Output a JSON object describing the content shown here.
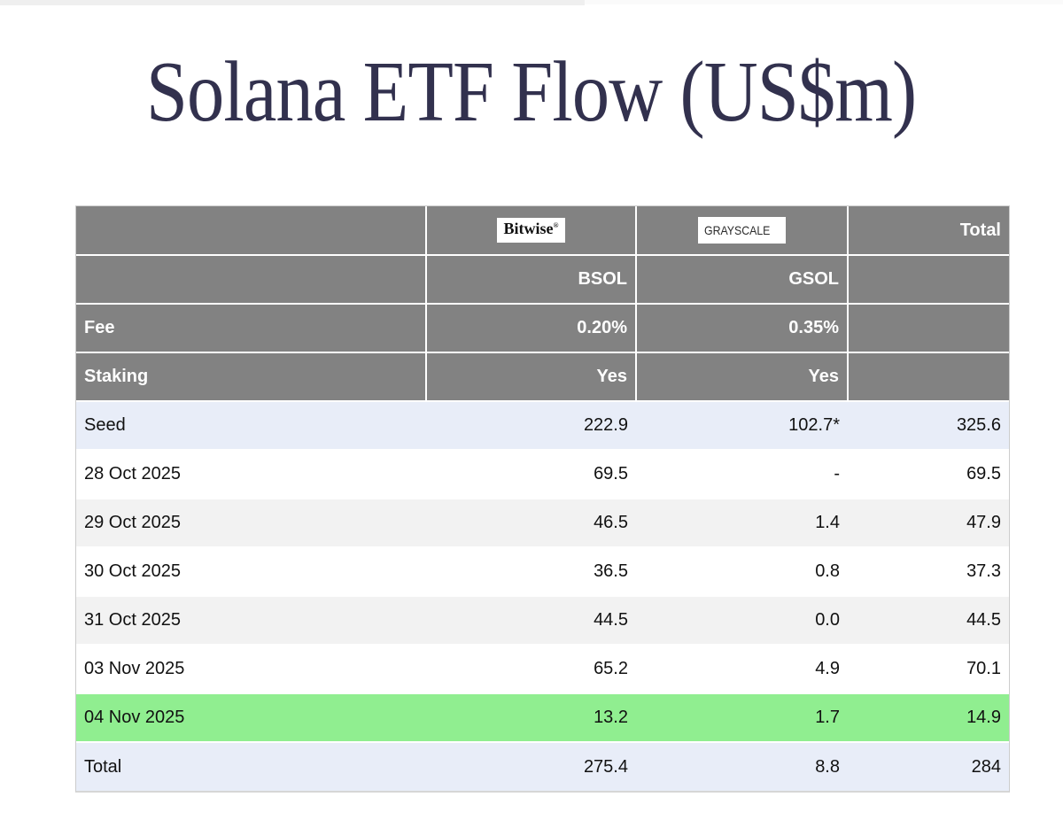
{
  "page": {
    "title": "Solana ETF Flow (US$m)"
  },
  "table": {
    "providers": {
      "bitwise_logo": "Bitwise",
      "bitwise_mark": "®",
      "grayscale_logo": "GRAYSCALE",
      "total_header": "Total"
    },
    "tickers": {
      "bsol": "BSOL",
      "gsol": "GSOL"
    },
    "fee": {
      "label": "Fee",
      "bsol": "0.20%",
      "gsol": "0.35%"
    },
    "staking": {
      "label": "Staking",
      "bsol": "Yes",
      "gsol": "Yes"
    },
    "rows": [
      {
        "label": "Seed",
        "bsol": "222.9",
        "gsol": "102.7*",
        "total": "325.6"
      },
      {
        "label": "28 Oct 2025",
        "bsol": "69.5",
        "gsol": "-",
        "total": "69.5"
      },
      {
        "label": "29 Oct 2025",
        "bsol": "46.5",
        "gsol": "1.4",
        "total": "47.9"
      },
      {
        "label": "30 Oct 2025",
        "bsol": "36.5",
        "gsol": "0.8",
        "total": "37.3"
      },
      {
        "label": "31 Oct 2025",
        "bsol": "44.5",
        "gsol": "0.0",
        "total": "44.5"
      },
      {
        "label": "03 Nov 2025",
        "bsol": "65.2",
        "gsol": "4.9",
        "total": "70.1"
      },
      {
        "label": "04 Nov 2025",
        "bsol": "13.2",
        "gsol": "1.7",
        "total": "14.9"
      },
      {
        "label": "Total",
        "bsol": "275.4",
        "gsol": "8.8",
        "total": "284"
      }
    ]
  },
  "colors": {
    "header_gray": "#828282",
    "row_blue": "#e8edf8",
    "row_stripe": "#f2f2f2",
    "row_green": "#90ee90",
    "title_navy": "#32314e",
    "logo_bg": "#ffffff"
  },
  "chart_data": {
    "type": "table",
    "title": "Solana ETF Flow (US$m)",
    "columns": [
      "",
      "Bitwise BSOL",
      "Grayscale GSOL",
      "Total"
    ],
    "fund_info": {
      "fee": {
        "BSOL": "0.20%",
        "GSOL": "0.35%"
      },
      "staking": {
        "BSOL": "Yes",
        "GSOL": "Yes"
      }
    },
    "rows": [
      {
        "label": "Seed",
        "BSOL": 222.9,
        "GSOL": "102.7*",
        "Total": 325.6
      },
      {
        "label": "28 Oct 2025",
        "BSOL": 69.5,
        "GSOL": null,
        "Total": 69.5
      },
      {
        "label": "29 Oct 2025",
        "BSOL": 46.5,
        "GSOL": 1.4,
        "Total": 47.9
      },
      {
        "label": "30 Oct 2025",
        "BSOL": 36.5,
        "GSOL": 0.8,
        "Total": 37.3
      },
      {
        "label": "31 Oct 2025",
        "BSOL": 44.5,
        "GSOL": 0.0,
        "Total": 44.5
      },
      {
        "label": "03 Nov 2025",
        "BSOL": 65.2,
        "GSOL": 4.9,
        "Total": 70.1
      },
      {
        "label": "04 Nov 2025",
        "BSOL": 13.2,
        "GSOL": 1.7,
        "Total": 14.9
      },
      {
        "label": "Total",
        "BSOL": 275.4,
        "GSOL": 8.8,
        "Total": 284
      }
    ],
    "row_highlights": {
      "Seed": "lavender",
      "04 Nov 2025": "green",
      "Total": "lavender"
    }
  }
}
